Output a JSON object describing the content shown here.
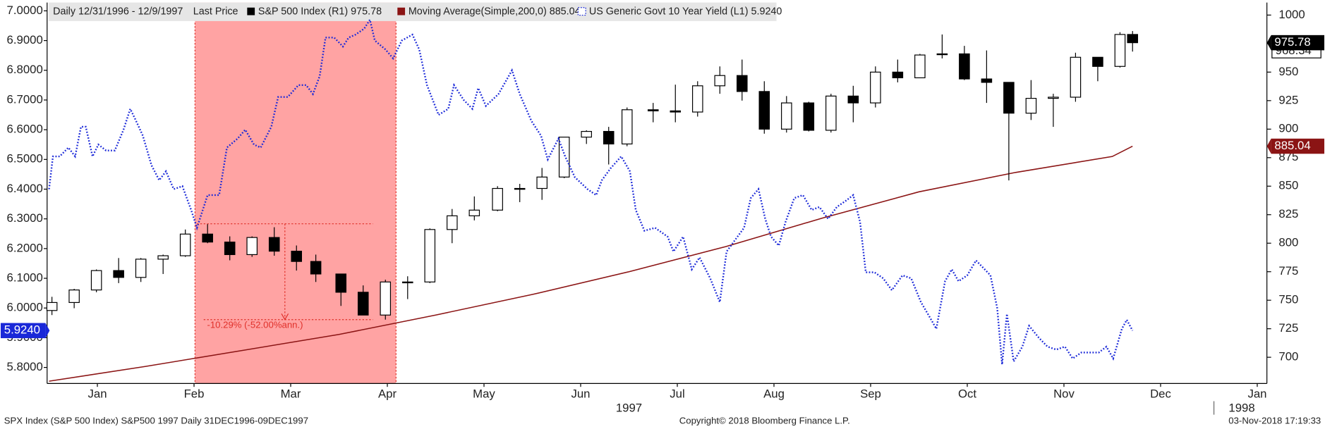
{
  "chart_data": {
    "type": "candlestick",
    "header": "Daily 12/31/1996 - 12/9/1997",
    "price_field": "Last Price",
    "xlim": [
      -0.02,
      12.6
    ],
    "xticks": [
      {
        "value": 0.5,
        "label": "Jan"
      },
      {
        "value": 1.5,
        "label": "Feb"
      },
      {
        "value": 2.5,
        "label": "Mar"
      },
      {
        "value": 3.5,
        "label": "Apr"
      },
      {
        "value": 4.5,
        "label": "May"
      },
      {
        "value": 5.5,
        "label": "Jun"
      },
      {
        "value": 6.5,
        "label": "Jul"
      },
      {
        "value": 7.5,
        "label": "Aug"
      },
      {
        "value": 8.5,
        "label": "Sep"
      },
      {
        "value": 9.5,
        "label": "Oct"
      },
      {
        "value": 10.5,
        "label": "Nov"
      },
      {
        "value": 11.5,
        "label": "Dec"
      },
      {
        "value": 12.5,
        "label": "Jan"
      }
    ],
    "year_labels": [
      {
        "value": 6.0,
        "label": "1997"
      },
      {
        "value": 12.34,
        "label": "1998"
      }
    ],
    "ylim": [
      5.746,
      7.028
    ],
    "yticks": [
      {
        "value": 7.0,
        "label": "7.0000"
      },
      {
        "value": 6.9,
        "label": "6.9000"
      },
      {
        "value": 6.8,
        "label": "6.8000"
      },
      {
        "value": 6.7,
        "label": "6.7000"
      },
      {
        "value": 6.6,
        "label": "6.6000"
      },
      {
        "value": 6.5,
        "label": "6.5000"
      },
      {
        "value": 6.4,
        "label": "6.4000"
      },
      {
        "value": 6.3,
        "label": "6.3000"
      },
      {
        "value": 6.2,
        "label": "6.2000"
      },
      {
        "value": 6.1,
        "label": "6.1000"
      },
      {
        "value": 6.0,
        "label": "6.0000"
      },
      {
        "value": 5.9,
        "label": "5.9000"
      },
      {
        "value": 5.8,
        "label": "5.8000"
      }
    ],
    "y2lim": [
      677,
      1011
    ],
    "y2ticks": [
      1000,
      975,
      950,
      925,
      900,
      875,
      850,
      825,
      800,
      775,
      750,
      725,
      700
    ],
    "series": [
      {
        "name": "S&P 500 Index (R1) 975.78",
        "type": "candlestick",
        "axis": "y2",
        "color": "#000000",
        "x": [
          0.03,
          0.26,
          0.49,
          0.72,
          0.95,
          1.18,
          1.41,
          1.64,
          1.87,
          2.1,
          2.33,
          2.56,
          2.76,
          3.02,
          3.25,
          3.48,
          3.71,
          3.94,
          4.17,
          4.4,
          4.64,
          4.87,
          5.1,
          5.33,
          5.56,
          5.79,
          5.98,
          6.25,
          6.48,
          6.71,
          6.94,
          7.17,
          7.4,
          7.63,
          7.86,
          8.09,
          8.32,
          8.55,
          8.78,
          9.01,
          9.24,
          9.47,
          9.7,
          9.93,
          10.16,
          10.39,
          10.62,
          10.85,
          11.08,
          11.21
        ],
        "open": [
          741,
          748,
          759,
          776,
          770,
          786,
          789,
          808,
          801,
          790,
          805,
          793,
          784,
          773,
          757,
          737,
          766,
          766,
          812,
          824,
          829,
          848,
          848,
          858,
          893,
          898,
          887,
          917,
          916,
          915,
          938,
          947,
          933,
          900,
          923,
          899,
          929,
          923,
          950,
          945,
          966,
          966,
          944,
          941,
          914,
          927,
          928,
          963,
          955,
          983
        ],
        "high": [
          753,
          760,
          777,
          787,
          787,
          790,
          812,
          817,
          806,
          806,
          814,
          798,
          790,
          773,
          763,
          768,
          771,
          813,
          830,
          841,
          850,
          852,
          866,
          893,
          899,
          902,
          919,
          923,
          939,
          942,
          955,
          961,
          942,
          929,
          924,
          931,
          938,
          955,
          961,
          966,
          983,
          973,
          969,
          941,
          943,
          931,
          967,
          963,
          985,
          986
        ],
        "low": [
          737,
          743,
          757,
          765,
          766,
          773,
          788,
          800,
          785,
          788,
          789,
          776,
          766,
          745,
          737,
          733,
          751,
          765,
          800,
          820,
          828,
          836,
          838,
          857,
          887,
          869,
          885,
          906,
          906,
          911,
          931,
          925,
          896,
          897,
          898,
          897,
          906,
          919,
          941,
          945,
          962,
          943,
          923,
          855,
          908,
          902,
          924,
          942,
          954,
          968
        ],
        "close": [
          748,
          759,
          776,
          770,
          786,
          789,
          808,
          801,
          790,
          805,
          793,
          784,
          773,
          757,
          737,
          766,
          766,
          812,
          824,
          829,
          848,
          848,
          858,
          893,
          898,
          887,
          917,
          916,
          915,
          938,
          947,
          933,
          900,
          923,
          899,
          929,
          923,
          950,
          945,
          965,
          966,
          944,
          941,
          914,
          927,
          928,
          963,
          955,
          983,
          975.78
        ]
      },
      {
        "name": "Moving Average(Simple,200,0) 885.04",
        "type": "line",
        "axis": "y2",
        "color": "#8b1414",
        "x": [
          0,
          1,
          2,
          3,
          4,
          5,
          6,
          7,
          8,
          9,
          10,
          11,
          11.21
        ],
        "values": [
          679,
          692,
          706,
          720,
          737,
          755,
          775,
          797,
          822,
          845,
          862,
          876,
          885.04
        ]
      },
      {
        "name": "US Generic Govt 10 Year Yield (L1) 5.9240",
        "type": "line",
        "dash": "dotted",
        "axis": "y",
        "color": "#1a28d8",
        "last_label": "5.9240",
        "x": [
          0,
          0.04,
          0.11,
          0.2,
          0.27,
          0.33,
          0.38,
          0.45,
          0.51,
          0.59,
          0.68,
          0.77,
          0.84,
          0.9,
          0.97,
          1.06,
          1.14,
          1.21,
          1.29,
          1.38,
          1.47,
          1.53,
          1.64,
          1.76,
          1.84,
          1.95,
          2.03,
          2.12,
          2.19,
          2.3,
          2.37,
          2.47,
          2.58,
          2.66,
          2.73,
          2.8,
          2.86,
          2.95,
          3.04,
          3.1,
          3.17,
          3.26,
          3.32,
          3.37,
          3.48,
          3.56,
          3.65,
          3.76,
          3.83,
          3.91,
          4.03,
          4.13,
          4.19,
          4.29,
          4.38,
          4.44,
          4.52,
          4.65,
          4.79,
          4.87,
          4.99,
          5.09,
          5.16,
          5.27,
          5.34,
          5.44,
          5.57,
          5.66,
          5.72,
          5.81,
          5.92,
          6.01,
          6.07,
          6.16,
          6.27,
          6.4,
          6.46,
          6.56,
          6.65,
          6.73,
          6.84,
          6.94,
          7.01,
          7.1,
          7.19,
          7.26,
          7.34,
          7.41,
          7.47,
          7.55,
          7.62,
          7.71,
          7.8,
          7.89,
          7.97,
          8.06,
          8.15,
          8.24,
          8.32,
          8.39,
          8.45,
          8.54,
          8.63,
          8.72,
          8.83,
          8.92,
          9.02,
          9.11,
          9.18,
          9.27,
          9.34,
          9.41,
          9.5,
          9.59,
          9.68,
          9.74,
          9.81,
          9.86,
          9.91,
          9.98,
          10.07,
          10.14,
          10.24,
          10.33,
          10.42,
          10.51,
          10.59,
          10.68,
          10.77,
          10.86,
          10.94,
          11.01,
          11.1,
          11.15,
          11.21
        ],
        "values": [
          6.4,
          6.51,
          6.51,
          6.54,
          6.51,
          6.61,
          6.61,
          6.51,
          6.55,
          6.53,
          6.53,
          6.6,
          6.67,
          6.63,
          6.58,
          6.48,
          6.43,
          6.46,
          6.4,
          6.41,
          6.33,
          6.27,
          6.38,
          6.38,
          6.54,
          6.57,
          6.6,
          6.55,
          6.54,
          6.61,
          6.71,
          6.71,
          6.75,
          6.75,
          6.72,
          6.78,
          6.91,
          6.91,
          6.88,
          6.91,
          6.92,
          6.94,
          6.97,
          6.9,
          6.87,
          6.84,
          6.9,
          6.92,
          6.87,
          6.75,
          6.65,
          6.67,
          6.75,
          6.7,
          6.67,
          6.74,
          6.68,
          6.72,
          6.8,
          6.72,
          6.63,
          6.58,
          6.5,
          6.57,
          6.51,
          6.44,
          6.4,
          6.38,
          6.43,
          6.47,
          6.51,
          6.46,
          6.33,
          6.26,
          6.27,
          6.24,
          6.19,
          6.24,
          6.13,
          6.17,
          6.1,
          6.02,
          6.19,
          6.23,
          6.27,
          6.37,
          6.4,
          6.3,
          6.24,
          6.21,
          6.29,
          6.37,
          6.38,
          6.33,
          6.34,
          6.3,
          6.34,
          6.36,
          6.38,
          6.29,
          6.12,
          6.12,
          6.1,
          6.06,
          6.11,
          6.1,
          6.02,
          5.97,
          5.93,
          6.09,
          6.13,
          6.09,
          6.11,
          6.16,
          6.13,
          6.11,
          6.0,
          5.81,
          5.98,
          5.82,
          5.87,
          5.94,
          5.9,
          5.87,
          5.86,
          5.87,
          5.83,
          5.85,
          5.85,
          5.85,
          5.87,
          5.83,
          5.93,
          5.96,
          5.924
        ]
      }
    ],
    "y2_tags": [
      968.34
    ],
    "shade": {
      "x": [
        1.51,
        3.59
      ],
      "color": "#ffa3a3",
      "edge": "#e0302a"
    },
    "measure": {
      "x": [
        1.53,
        3.35
      ],
      "levels": [
        817,
        733
      ],
      "label": "-10.29% (-52.00%ann.)",
      "color": "#e0302a"
    },
    "footer_left": "SPX Index (S&P 500 Index) S&P500 1997  Daily 31DEC1996-09DEC1997",
    "copyright": "Copyright© 2018 Bloomberg Finance L.P.",
    "timestamp": "03-Nov-2018 17:19:33"
  }
}
